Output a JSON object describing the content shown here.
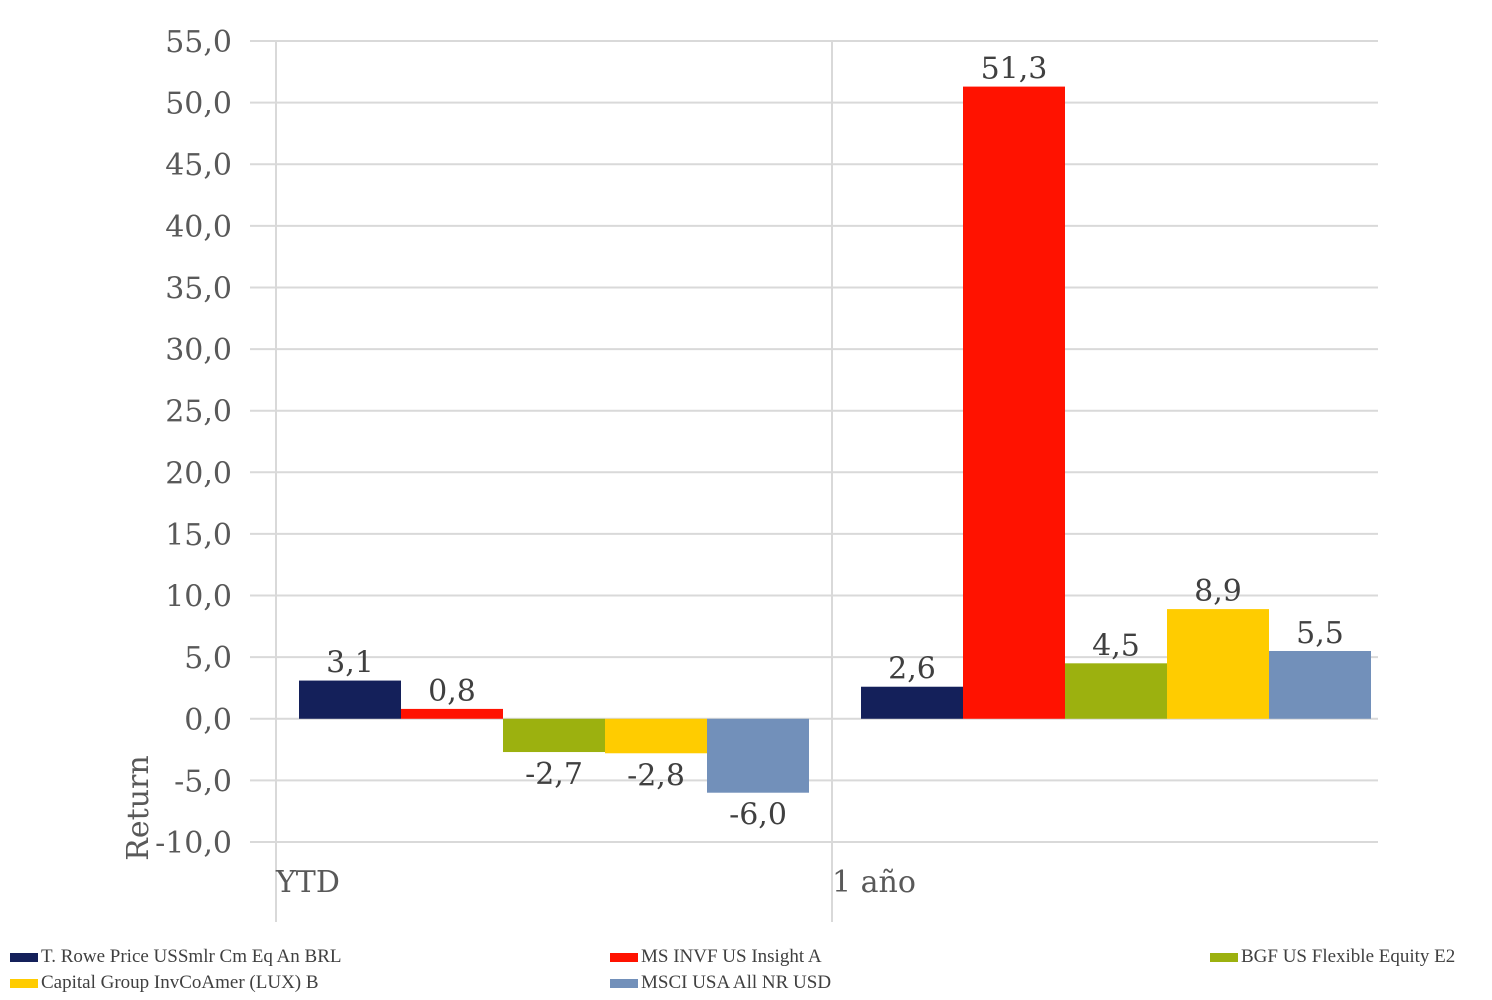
{
  "chart_data": {
    "type": "bar",
    "title": "",
    "xlabel": "",
    "ylabel": "Return",
    "ylim": [
      -10,
      55
    ],
    "ytick_labels": [
      "55,0",
      "50,0",
      "45,0",
      "40,0",
      "35,0",
      "30,0",
      "25,0",
      "20,0",
      "15,0",
      "10,0",
      "5,0",
      "0,0",
      "-5,0",
      "-10,0"
    ],
    "ytick_values": [
      55,
      50,
      45,
      40,
      35,
      30,
      25,
      20,
      15,
      10,
      5,
      0,
      -5,
      -10
    ],
    "categories": [
      "YTD",
      "1 año"
    ],
    "grid": true,
    "legend_position": "bottom",
    "series": [
      {
        "name": "T. Rowe Price USSmlr Cm Eq An BRL",
        "color": "#14205A",
        "values": [
          3.1,
          2.6
        ],
        "labels": [
          "3,1",
          "2,6"
        ]
      },
      {
        "name": "MS INVF US Insight A",
        "color": "#FF1200",
        "values": [
          0.8,
          51.3
        ],
        "labels": [
          "0,8",
          "51,3"
        ]
      },
      {
        "name": "BGF US Flexible Equity E2",
        "color": "#9CB10F",
        "values": [
          -2.7,
          4.5
        ],
        "labels": [
          "-2,7",
          "4,5"
        ]
      },
      {
        "name": "Capital Group InvCoAmer (LUX) B",
        "color": "#FFCC00",
        "values": [
          -2.8,
          8.9
        ],
        "labels": [
          "-2,8",
          "8,9"
        ]
      },
      {
        "name": "MSCI USA All NR USD",
        "color": "#7290BA",
        "values": [
          -6.0,
          5.5
        ],
        "labels": [
          "-6,0",
          "5,5"
        ]
      }
    ]
  }
}
